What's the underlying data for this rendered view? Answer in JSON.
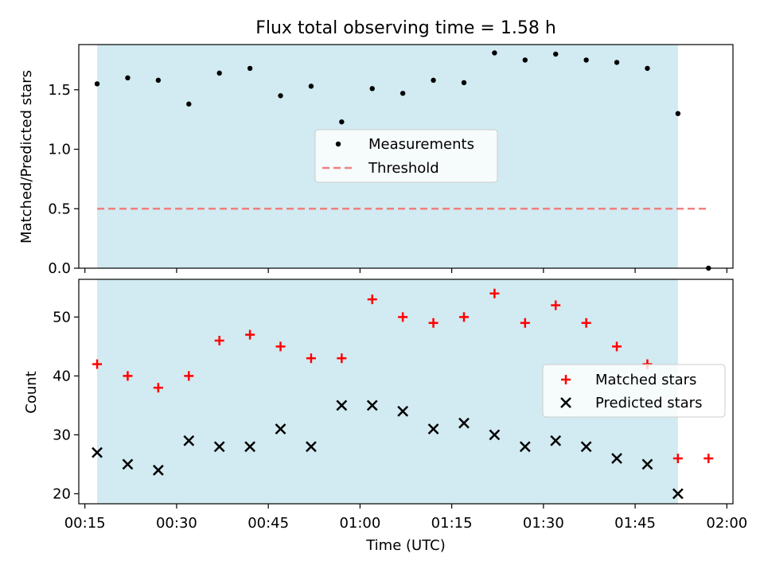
{
  "title": "Flux total observing time = 1.58 h",
  "chart_data": [
    {
      "type": "scatter",
      "ylabel": "Matched/Predicted stars",
      "ylim": [
        0,
        1.88
      ],
      "yticks": [
        0.0,
        0.5,
        1.0,
        1.5
      ],
      "ytick_labels": [
        "0.0",
        "0.5",
        "1.0",
        "1.5"
      ],
      "shaded_span": [
        "00:17",
        "01:52"
      ],
      "shaded_color": "#add8e6",
      "legend": {
        "placement": "center"
      },
      "series": [
        {
          "name": "Measurements",
          "marker": "dot",
          "color": "#000000",
          "x": [
            "00:17",
            "00:22",
            "00:27",
            "00:32",
            "00:37",
            "00:42",
            "00:47",
            "00:52",
            "00:57",
            "01:02",
            "01:07",
            "01:12",
            "01:17",
            "01:22",
            "01:27",
            "01:32",
            "01:37",
            "01:42",
            "01:47",
            "01:52",
            "01:57"
          ],
          "y": [
            1.55,
            1.6,
            1.58,
            1.38,
            1.64,
            1.68,
            1.45,
            1.53,
            1.23,
            1.51,
            1.47,
            1.58,
            1.56,
            1.81,
            1.75,
            1.8,
            1.75,
            1.73,
            1.68,
            1.3,
            0.0
          ]
        },
        {
          "name": "Threshold",
          "marker": "dashed-line",
          "color": "#f08080",
          "x": [
            "00:17",
            "01:57"
          ],
          "y": [
            0.5,
            0.5
          ]
        }
      ]
    },
    {
      "type": "scatter",
      "xlabel": "Time (UTC)",
      "ylabel": "Count",
      "ylim": [
        18.3,
        56.4
      ],
      "yticks": [
        20,
        30,
        40,
        50
      ],
      "ytick_labels": [
        "20",
        "30",
        "40",
        "50"
      ],
      "xlim": [
        "00:14",
        "02:01"
      ],
      "xticks": [
        "00:15",
        "00:30",
        "00:45",
        "01:00",
        "01:15",
        "01:30",
        "01:45",
        "02:00"
      ],
      "xtick_labels": [
        "00:15",
        "00:30",
        "00:45",
        "01:00",
        "01:15",
        "01:30",
        "01:45",
        "02:00"
      ],
      "shaded_span": [
        "00:17",
        "01:52"
      ],
      "shaded_color": "#add8e6",
      "legend": {
        "placement": "center-right"
      },
      "series": [
        {
          "name": "Matched stars",
          "marker": "plus",
          "color": "#ff0000",
          "x": [
            "00:17",
            "00:22",
            "00:27",
            "00:32",
            "00:37",
            "00:42",
            "00:47",
            "00:52",
            "00:57",
            "01:02",
            "01:07",
            "01:12",
            "01:17",
            "01:22",
            "01:27",
            "01:32",
            "01:37",
            "01:42",
            "01:47",
            "01:52",
            "01:57"
          ],
          "y": [
            42,
            40,
            38,
            40,
            46,
            47,
            45,
            43,
            43,
            53,
            50,
            49,
            50,
            54,
            49,
            52,
            49,
            45,
            42,
            26,
            26
          ]
        },
        {
          "name": "Predicted stars",
          "marker": "x",
          "color": "#000000",
          "x": [
            "00:17",
            "00:22",
            "00:27",
            "00:32",
            "00:37",
            "00:42",
            "00:47",
            "00:52",
            "00:57",
            "01:02",
            "01:07",
            "01:12",
            "01:17",
            "01:22",
            "01:27",
            "01:32",
            "01:37",
            "01:42",
            "01:47",
            "01:52"
          ],
          "y": [
            27,
            25,
            24,
            29,
            28,
            28,
            31,
            28,
            35,
            35,
            34,
            31,
            32,
            30,
            28,
            29,
            28,
            26,
            25,
            20
          ]
        }
      ]
    }
  ]
}
